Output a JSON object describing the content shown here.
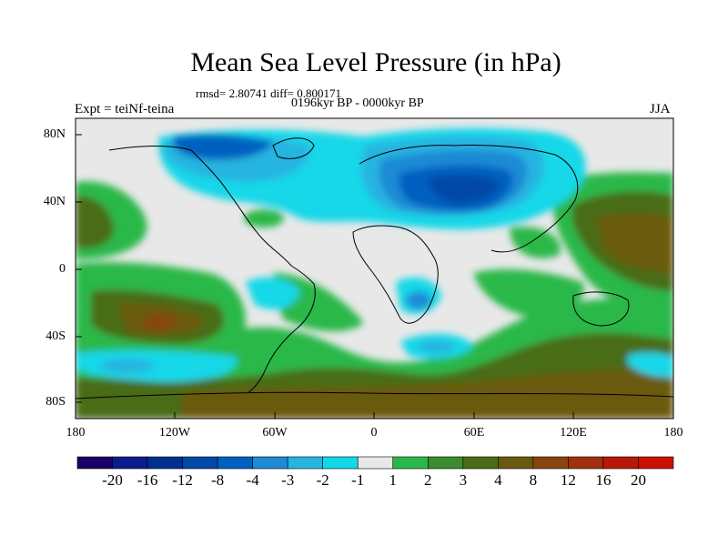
{
  "title": "Mean Sea Level Pressure (in hPa)",
  "stats_text": "rmsd= 2.80741 diff= 0.800171",
  "period_text": "0196kyr BP - 0000kyr BP",
  "experiment_text": "Expt = teiNf-teina",
  "season": "JJA",
  "lat_labels": [
    "80N",
    "40N",
    "0",
    "40S",
    "80S"
  ],
  "lon_labels": [
    "180",
    "120W",
    "60W",
    "0",
    "60E",
    "120E",
    "180"
  ],
  "colorbar": {
    "labels": [
      "-20",
      "-16",
      "-12",
      "-8",
      "-4",
      "-3",
      "-2",
      "-1",
      "1",
      "2",
      "3",
      "4",
      "8",
      "12",
      "16",
      "20"
    ],
    "colors": [
      "#190066",
      "#0c1c8c",
      "#00308f",
      "#0049a8",
      "#0060c0",
      "#1c8ad4",
      "#28b4e0",
      "#12d8e8",
      "#e8e8e8",
      "#2ab84a",
      "#3a8c2e",
      "#4a6c18",
      "#6a5a10",
      "#8a4410",
      "#a03010",
      "#b81808",
      "#cc1000"
    ]
  },
  "map_legend": {
    "land_color": "#000000",
    "neutral_color": "#e8e8e8"
  }
}
